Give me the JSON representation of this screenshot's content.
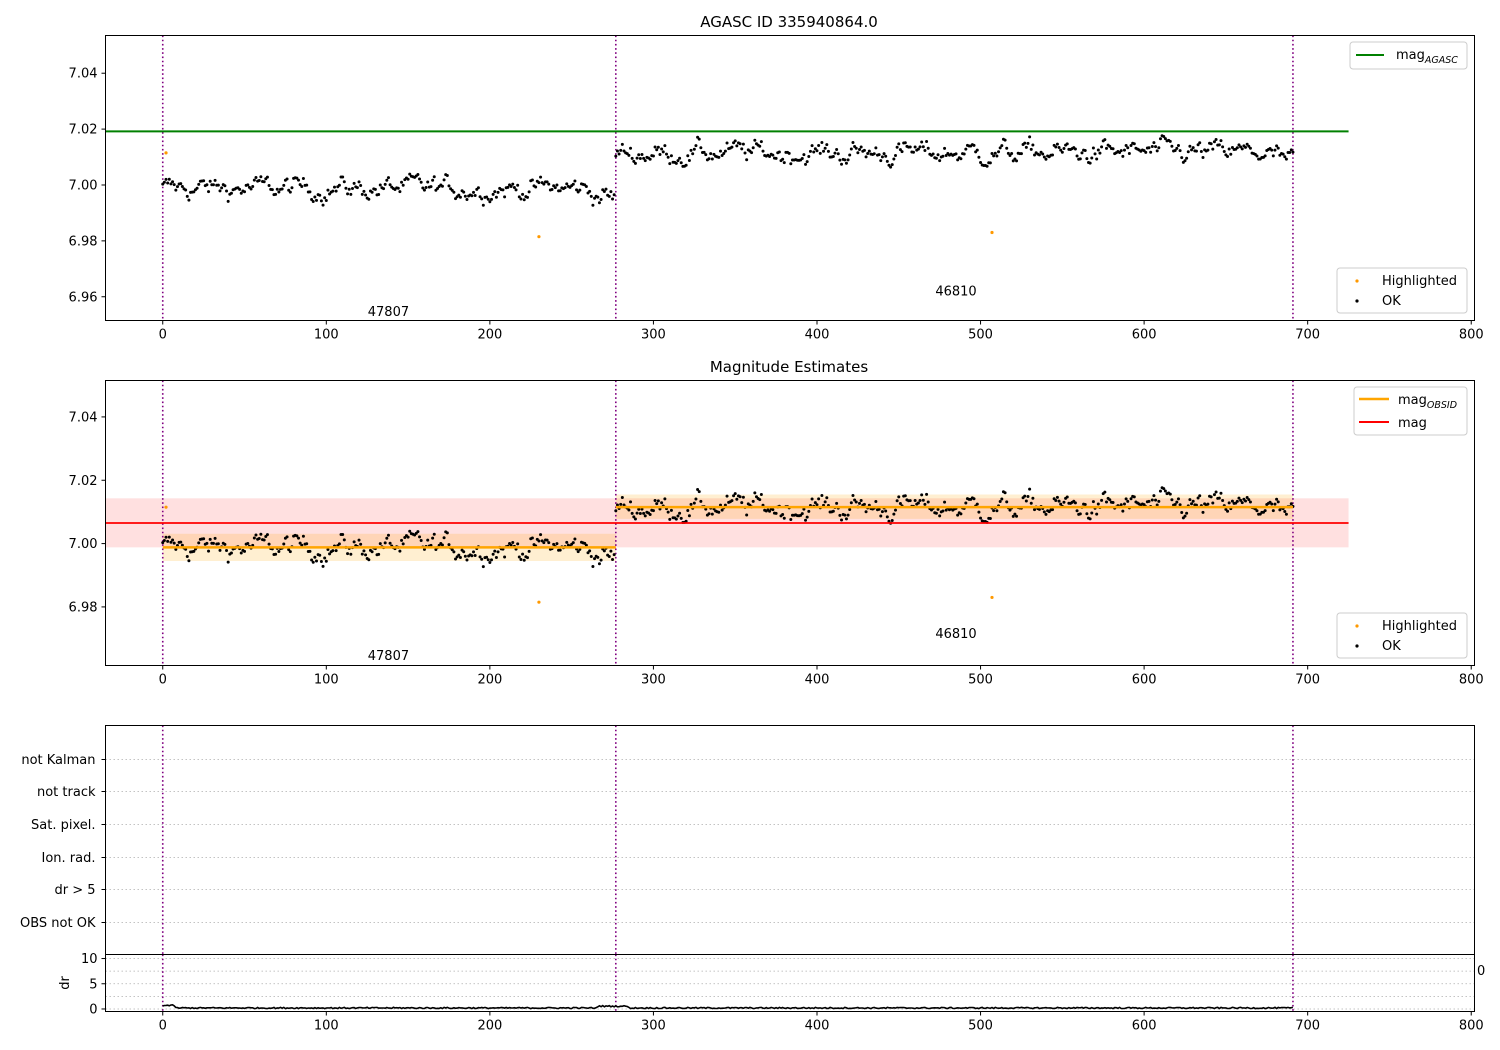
{
  "chart_data": [
    {
      "type": "scatter",
      "title": "AGASC ID 335940864.0",
      "xlabel": "",
      "ylabel": "",
      "xlim": [
        -35,
        802
      ],
      "ylim": [
        6.9515,
        7.0535
      ],
      "xticks": [
        0,
        100,
        200,
        300,
        400,
        500,
        600,
        700,
        800
      ],
      "yticks": [
        6.96,
        6.98,
        7.0,
        7.02,
        7.04
      ],
      "ytick_labels": [
        "6.96",
        "6.98",
        "7.00",
        "7.02",
        "7.04"
      ],
      "obs_boundaries": [
        0,
        277,
        691
      ],
      "obs_labels": [
        {
          "text": "47807",
          "x": 138,
          "y": 6.9545
        },
        {
          "text": "46810",
          "x": 485,
          "y": 6.9618
        }
      ],
      "series": [
        {
          "name": "Highlighted",
          "color": "#ff9900",
          "points": [
            [
              2,
              7.0115
            ],
            [
              230,
              6.9815
            ],
            [
              507,
              6.983
            ]
          ]
        },
        {
          "name": "OK",
          "color": "#000000",
          "segments": [
            {
              "x_start": 0,
              "x_end": 276,
              "mean": 6.9988
            },
            {
              "x_start": 277,
              "x_end": 691,
              "mean": 7.0115
            }
          ]
        }
      ],
      "reference_lines": [
        {
          "name": "mag",
          "sub": "AGASC",
          "value": 7.0192,
          "x_start": -35,
          "x_end": 725,
          "color": "#008000"
        }
      ],
      "legend_lines": [
        {
          "label": "mag",
          "sub": "AGASC",
          "color": "#008000"
        }
      ],
      "legend_points": [
        {
          "label": "Highlighted",
          "color": "#ff9900"
        },
        {
          "label": "OK",
          "color": "#000000"
        }
      ],
      "legend_placement": "top-right / bottom-right"
    },
    {
      "type": "scatter",
      "title": "Magnitude Estimates",
      "xlabel": "",
      "ylabel": "",
      "xlim": [
        -35,
        802
      ],
      "ylim": [
        6.9615,
        7.0515
      ],
      "xticks": [
        0,
        100,
        200,
        300,
        400,
        500,
        600,
        700,
        800
      ],
      "yticks": [
        6.98,
        7.0,
        7.02,
        7.04
      ],
      "ytick_labels": [
        "6.98",
        "7.00",
        "7.02",
        "7.04"
      ],
      "obs_boundaries": [
        0,
        277,
        691
      ],
      "obs_labels": [
        {
          "text": "47807",
          "x": 138,
          "y": 6.9645
        },
        {
          "text": "46810",
          "x": 485,
          "y": 6.9715
        }
      ],
      "series": [
        {
          "name": "Highlighted",
          "color": "#ff9900",
          "points": [
            [
              2,
              7.0115
            ],
            [
              230,
              6.9815
            ],
            [
              507,
              6.983
            ]
          ]
        },
        {
          "name": "OK",
          "color": "#000000",
          "segments": [
            {
              "x_start": 0,
              "x_end": 276,
              "mean": 6.9988
            },
            {
              "x_start": 277,
              "x_end": 691,
              "mean": 7.0115
            }
          ]
        }
      ],
      "obs_means": [
        {
          "x_start": 0,
          "x_end": 277,
          "value": 6.9988,
          "band": [
            6.9945,
            7.0031
          ]
        },
        {
          "x_start": 277,
          "x_end": 691,
          "value": 7.0115,
          "band": [
            7.0078,
            7.0155
          ]
        }
      ],
      "reference_lines": [
        {
          "name": "mag",
          "value": 7.0065,
          "x_start": -35,
          "x_end": 725,
          "band": [
            6.9988,
            7.0143
          ],
          "color": "#ff0000"
        }
      ],
      "legend_lines": [
        {
          "label": "mag",
          "sub": "OBSID",
          "color": "#ffa500"
        },
        {
          "label": "mag",
          "sub": "",
          "color": "#ff0000"
        }
      ],
      "legend_points": [
        {
          "label": "Highlighted",
          "color": "#ff9900"
        },
        {
          "label": "OK",
          "color": "#000000"
        }
      ]
    },
    {
      "type": "scatter",
      "title": "",
      "xlim": [
        -35,
        802
      ],
      "flag_categories": [
        "not Kalman",
        "not track",
        "Sat. pixel.",
        "Ion. rad.",
        "dr > 5",
        "OBS not OK"
      ],
      "obs_boundaries": [
        0,
        277,
        691
      ]
    },
    {
      "type": "line",
      "title": "",
      "xlabel": "",
      "ylabel": "dr",
      "xlim": [
        -35,
        802
      ],
      "ylim": [
        -0.5,
        10.8
      ],
      "xticks": [
        0,
        100,
        200,
        300,
        400,
        500,
        600,
        700,
        800
      ],
      "yticks": [
        0,
        5,
        10
      ],
      "ytick_labels": [
        "0",
        "5",
        "10"
      ],
      "stray_label": "0",
      "obs_boundaries": [
        0,
        277,
        691
      ],
      "series": [
        {
          "name": "",
          "color": "#000000",
          "x_start": 0,
          "x_end": 691,
          "mean": 0.2,
          "amplitude": 0.25
        }
      ]
    }
  ]
}
